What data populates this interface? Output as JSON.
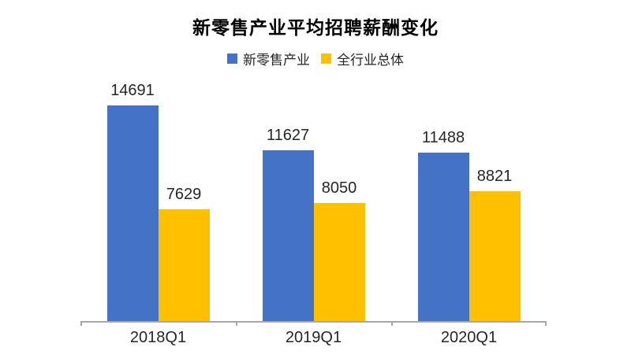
{
  "chart_data": {
    "type": "bar",
    "title": "新零售产业平均招聘薪酬变化",
    "categories": [
      "2018Q1",
      "2019Q1",
      "2020Q1"
    ],
    "series": [
      {
        "name": "新零售产业",
        "color": "#4472C4",
        "values": [
          14691,
          11627,
          11488
        ]
      },
      {
        "name": "全行业总体",
        "color": "#FFC000",
        "values": [
          7629,
          8050,
          8821
        ]
      }
    ],
    "ylim": [
      0,
      14691
    ],
    "value_labels": true,
    "legend_position": "top",
    "grid": false,
    "axis_color": "#a6a6a6",
    "text_color": "#262626"
  }
}
